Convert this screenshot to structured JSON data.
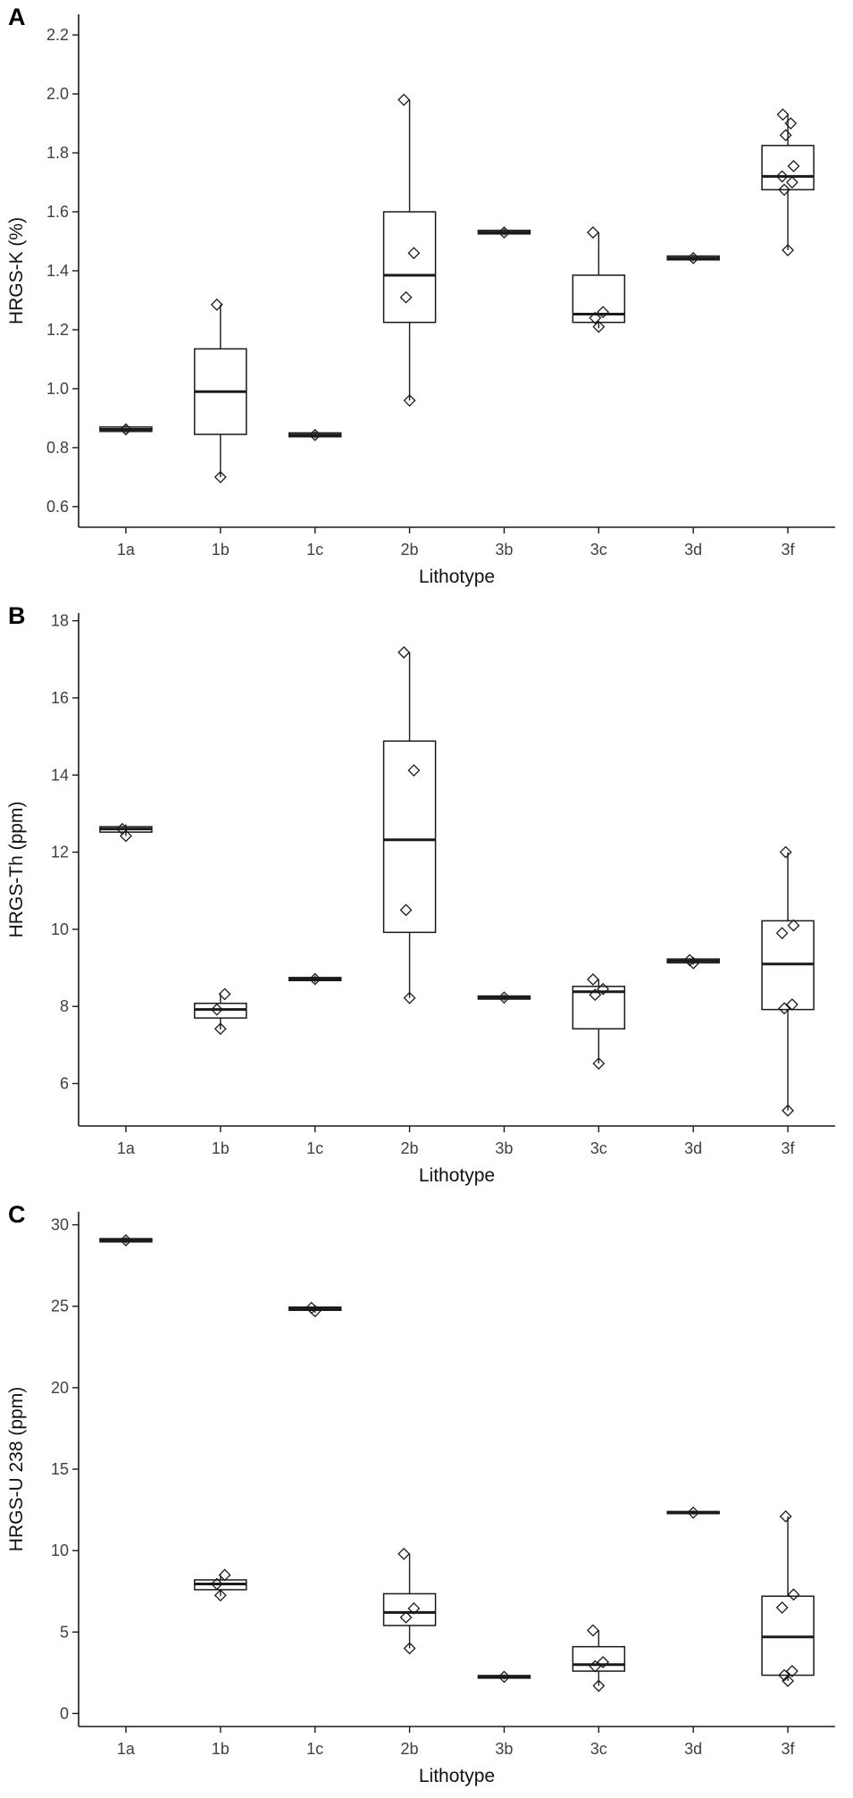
{
  "figure": {
    "panels": [
      "A",
      "B",
      "C"
    ],
    "xlabel": "Lithotype",
    "categories": [
      "1a",
      "1b",
      "1c",
      "2b",
      "3b",
      "3c",
      "3d",
      "3f"
    ],
    "ink_color": "#1a1a1a",
    "tick_color": "#404040"
  },
  "chart_data": [
    {
      "type": "boxplot",
      "panel": "A",
      "ylabel": "HRGS-K (%)",
      "xlabel": "Lithotype",
      "categories": [
        "1a",
        "1b",
        "1c",
        "2b",
        "3b",
        "3c",
        "3d",
        "3f"
      ],
      "ylim": [
        0.53,
        2.27
      ],
      "ytick_values": [
        0.6,
        0.8,
        1.0,
        1.2,
        1.4,
        1.6,
        1.8,
        2.0,
        2.2
      ],
      "ytick_labels": [
        "0.6",
        "0.8",
        "1.0",
        "1.2",
        "1.4",
        "1.6",
        "1.8",
        "2.0",
        "2.2"
      ],
      "grid": false,
      "legend": false,
      "boxes": [
        {
          "category": "1a",
          "whislo": 0.85,
          "q1": 0.855,
          "med": 0.862,
          "q3": 0.87,
          "whishi": 0.875,
          "points": [
            0.862
          ]
        },
        {
          "category": "1b",
          "whislo": 0.7,
          "q1": 0.845,
          "med": 0.99,
          "q3": 1.135,
          "whishi": 1.285,
          "points": [
            0.7,
            1.285
          ]
        },
        {
          "category": "1c",
          "whislo": 0.832,
          "q1": 0.837,
          "med": 0.843,
          "q3": 0.85,
          "whishi": 0.855,
          "points": [
            0.843
          ]
        },
        {
          "category": "2b",
          "whislo": 0.96,
          "q1": 1.225,
          "med": 1.385,
          "q3": 1.6,
          "whishi": 1.98,
          "points": [
            0.96,
            1.31,
            1.46,
            1.98
          ]
        },
        {
          "category": "3b",
          "whislo": 1.52,
          "q1": 1.525,
          "med": 1.53,
          "q3": 1.537,
          "whishi": 1.543,
          "points": [
            1.53
          ]
        },
        {
          "category": "3c",
          "whislo": 1.205,
          "q1": 1.225,
          "med": 1.253,
          "q3": 1.385,
          "whishi": 1.53,
          "points": [
            1.21,
            1.24,
            1.26,
            1.53
          ]
        },
        {
          "category": "3d",
          "whislo": 1.432,
          "q1": 1.437,
          "med": 1.443,
          "q3": 1.45,
          "whishi": 1.455,
          "points": [
            1.443
          ]
        },
        {
          "category": "3f",
          "whislo": 1.47,
          "q1": 1.675,
          "med": 1.72,
          "q3": 1.825,
          "whishi": 1.93,
          "points": [
            1.47,
            1.675,
            1.7,
            1.72,
            1.755,
            1.86,
            1.9,
            1.93
          ]
        }
      ]
    },
    {
      "type": "boxplot",
      "panel": "B",
      "ylabel": "HRGS-Th (ppm)",
      "xlabel": "Lithotype",
      "categories": [
        "1a",
        "1b",
        "1c",
        "2b",
        "3b",
        "3c",
        "3d",
        "3f"
      ],
      "ylim": [
        4.9,
        18.2
      ],
      "ytick_values": [
        6,
        8,
        10,
        12,
        14,
        16,
        18
      ],
      "ytick_labels": [
        "6",
        "8",
        "10",
        "12",
        "14",
        "16",
        "18"
      ],
      "grid": false,
      "legend": false,
      "boxes": [
        {
          "category": "1a",
          "whislo": 12.42,
          "q1": 12.52,
          "med": 12.6,
          "q3": 12.66,
          "whishi": 12.72,
          "points": [
            12.42,
            12.6
          ]
        },
        {
          "category": "1b",
          "whislo": 7.4,
          "q1": 7.7,
          "med": 7.92,
          "q3": 8.08,
          "whishi": 8.32,
          "points": [
            7.42,
            7.92,
            8.32
          ]
        },
        {
          "category": "1c",
          "whislo": 8.62,
          "q1": 8.67,
          "med": 8.71,
          "q3": 8.75,
          "whishi": 8.8,
          "points": [
            8.71
          ]
        },
        {
          "category": "2b",
          "whislo": 8.22,
          "q1": 9.92,
          "med": 12.32,
          "q3": 14.88,
          "whishi": 17.18,
          "points": [
            8.22,
            10.5,
            14.12,
            17.18
          ]
        },
        {
          "category": "3b",
          "whislo": 8.15,
          "q1": 8.19,
          "med": 8.23,
          "q3": 8.27,
          "whishi": 8.31,
          "points": [
            8.23
          ]
        },
        {
          "category": "3c",
          "whislo": 6.52,
          "q1": 7.42,
          "med": 8.38,
          "q3": 8.52,
          "whishi": 8.7,
          "points": [
            6.52,
            8.3,
            8.45,
            8.7
          ]
        },
        {
          "category": "3d",
          "whislo": 9.08,
          "q1": 9.13,
          "med": 9.18,
          "q3": 9.23,
          "whishi": 9.28,
          "points": [
            9.12,
            9.2
          ]
        },
        {
          "category": "3f",
          "whislo": 5.3,
          "q1": 7.92,
          "med": 9.1,
          "q3": 10.22,
          "whishi": 12.0,
          "points": [
            5.3,
            7.95,
            8.05,
            9.9,
            10.1,
            12.0
          ]
        }
      ]
    },
    {
      "type": "boxplot",
      "panel": "C",
      "ylabel": "HRGS-U 238 (ppm)",
      "xlabel": "Lithotype",
      "categories": [
        "1a",
        "1b",
        "1c",
        "2b",
        "3b",
        "3c",
        "3d",
        "3f"
      ],
      "ylim": [
        -0.8,
        30.8
      ],
      "ytick_values": [
        0,
        5,
        10,
        15,
        20,
        25,
        30
      ],
      "ytick_labels": [
        "0",
        "5",
        "10",
        "15",
        "20",
        "25",
        "30"
      ],
      "grid": false,
      "legend": false,
      "boxes": [
        {
          "category": "1a",
          "whislo": 28.85,
          "q1": 28.95,
          "med": 29.05,
          "q3": 29.15,
          "whishi": 29.25,
          "points": [
            29.05
          ]
        },
        {
          "category": "1b",
          "whislo": 7.2,
          "q1": 7.6,
          "med": 7.95,
          "q3": 8.2,
          "whishi": 8.5,
          "points": [
            7.25,
            7.95,
            8.5
          ]
        },
        {
          "category": "1c",
          "whislo": 24.6,
          "q1": 24.75,
          "med": 24.85,
          "q3": 24.95,
          "whishi": 25.05,
          "points": [
            24.7,
            24.9
          ]
        },
        {
          "category": "2b",
          "whislo": 4.0,
          "q1": 5.4,
          "med": 6.2,
          "q3": 7.35,
          "whishi": 9.8,
          "points": [
            4.0,
            5.9,
            6.45,
            9.8
          ]
        },
        {
          "category": "3b",
          "whislo": 2.1,
          "q1": 2.17,
          "med": 2.25,
          "q3": 2.33,
          "whishi": 2.4,
          "points": [
            2.25
          ]
        },
        {
          "category": "3c",
          "whislo": 1.7,
          "q1": 2.6,
          "med": 3.0,
          "q3": 4.1,
          "whishi": 5.1,
          "points": [
            1.7,
            2.9,
            3.15,
            5.1
          ]
        },
        {
          "category": "3d",
          "whislo": 12.2,
          "q1": 12.27,
          "med": 12.33,
          "q3": 12.4,
          "whishi": 12.47,
          "points": [
            12.33
          ]
        },
        {
          "category": "3f",
          "whislo": 2.0,
          "q1": 2.35,
          "med": 4.7,
          "q3": 7.2,
          "whishi": 12.1,
          "points": [
            2.0,
            2.35,
            2.6,
            6.5,
            7.3,
            12.1
          ]
        }
      ]
    }
  ]
}
